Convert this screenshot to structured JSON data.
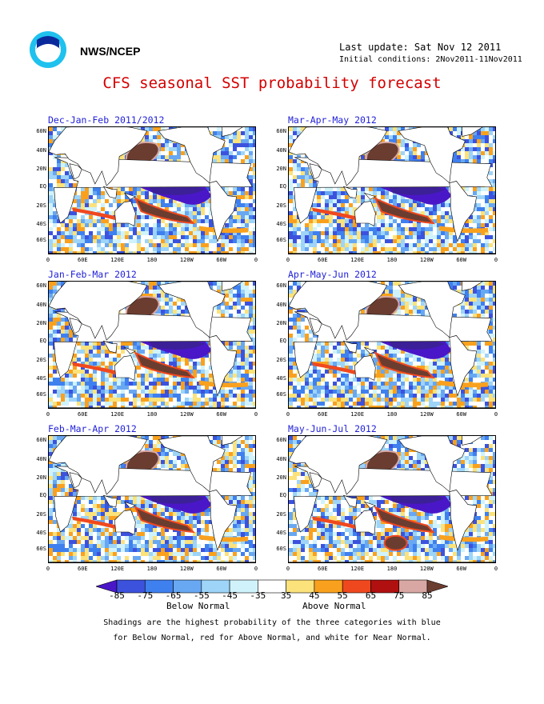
{
  "header": {
    "agency": "NWS/NCEP",
    "last_update": "Last update: Sat Nov 12 2011",
    "initial_conditions": "Initial conditions: 2Nov2011-11Nov2011",
    "title": "CFS seasonal SST probability forecast"
  },
  "panels": [
    {
      "title": "Dec-Jan-Feb 2011/2012"
    },
    {
      "title": "Mar-Apr-May 2012"
    },
    {
      "title": "Jan-Feb-Mar 2012"
    },
    {
      "title": "Apr-May-Jun 2012"
    },
    {
      "title": "Feb-Mar-Apr 2012"
    },
    {
      "title": "May-Jun-Jul 2012"
    }
  ],
  "axes": {
    "lat_labels": [
      "60N",
      "40N",
      "20N",
      "EQ",
      "20S",
      "40S",
      "60S"
    ],
    "lon_labels": [
      "0",
      "60E",
      "120E",
      "180",
      "120W",
      "60W",
      "0"
    ]
  },
  "colorbar": {
    "labels": [
      "-85",
      "-75",
      "-65",
      "-55",
      "-45",
      "-35",
      "35",
      "45",
      "55",
      "65",
      "75",
      "85"
    ],
    "colors": [
      "#4a17c8",
      "#3c52dd",
      "#3f80ef",
      "#68a7f2",
      "#9ed4f8",
      "#d0f3fb",
      "#ffffff",
      "#fbe27a",
      "#f9a11e",
      "#f0481e",
      "#b01010",
      "#d8a7a3",
      "#6b3d30"
    ],
    "below_label": "Below Normal",
    "above_label": "Above Normal"
  },
  "footnote": {
    "line1": "Shadings are the highest probability of the three categories with blue",
    "line2": "for Below Normal, red for Above Normal, and white for Near Normal."
  }
}
